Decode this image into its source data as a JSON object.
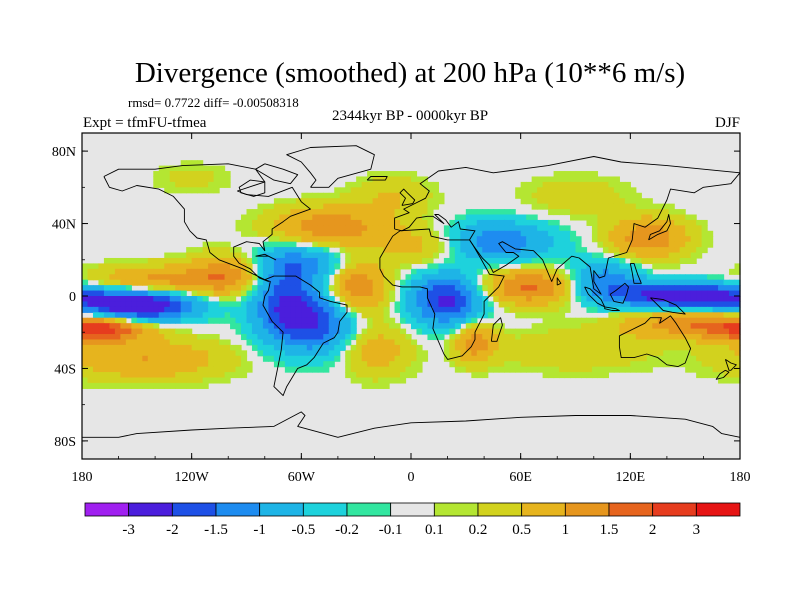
{
  "chart_data": {
    "type": "heatmap",
    "title": "Divergence (smoothed) at 200 hPa (10**6 m/s)",
    "stats": "rmsd= 0.7722 diff= -0.00508318",
    "left_label": "Expt = tfmFU-tfmea",
    "center_label": "2344kyr BP - 0000kyr BP",
    "right_label": "DJF",
    "x_ticks": [
      "180",
      "120W",
      "60W",
      "0",
      "60E",
      "120E",
      "180"
    ],
    "y_ticks": [
      "80N",
      "40N",
      "0",
      "40S",
      "80S"
    ],
    "x_tick_values": [
      -180,
      -120,
      -60,
      0,
      60,
      120,
      180
    ],
    "y_tick_values": [
      80,
      40,
      0,
      -40,
      -80
    ],
    "xlim": [
      -180,
      180
    ],
    "ylim": [
      -90,
      90
    ],
    "colorbar": {
      "labels": [
        "-3",
        "-2",
        "-1.5",
        "-1",
        "-0.5",
        "-0.2",
        "-0.1",
        "0.1",
        "0.2",
        "0.5",
        "1",
        "1.5",
        "2",
        "3"
      ],
      "colors": [
        "#a020f0",
        "#4b1edc",
        "#1e50e6",
        "#1e8cf0",
        "#1eb4e6",
        "#1ed2dc",
        "#32e6a0",
        "#e6e6e6",
        "#b4e632",
        "#d2d21e",
        "#e6b41e",
        "#e6961e",
        "#e6641e",
        "#e63c1e",
        "#e61414"
      ]
    },
    "anomalies": [
      {
        "lon": -150,
        "lat": -5,
        "value": -3.0,
        "slon": 22,
        "slat": 6
      },
      {
        "lon": -170,
        "lat": -18,
        "value": 2.2,
        "slon": 18,
        "slat": 5
      },
      {
        "lon": -140,
        "lat": 8,
        "value": 1.2,
        "slon": 25,
        "slat": 6
      },
      {
        "lon": -145,
        "lat": -35,
        "value": 1.0,
        "slon": 30,
        "slat": 8
      },
      {
        "lon": -100,
        "lat": 12,
        "value": 1.3,
        "slon": 15,
        "slat": 8
      },
      {
        "lon": -70,
        "lat": -5,
        "value": -1.8,
        "slon": 12,
        "slat": 14
      },
      {
        "lon": -50,
        "lat": -15,
        "value": -1.7,
        "slon": 14,
        "slat": 12
      },
      {
        "lon": -60,
        "lat": 18,
        "value": -1.2,
        "slon": 20,
        "slat": 8
      },
      {
        "lon": -45,
        "lat": 38,
        "value": 1.4,
        "slon": 22,
        "slat": 8
      },
      {
        "lon": -30,
        "lat": 5,
        "value": 1.6,
        "slon": 12,
        "slat": 10
      },
      {
        "lon": -10,
        "lat": 55,
        "value": 0.5,
        "slon": 15,
        "slat": 8
      },
      {
        "lon": -20,
        "lat": -30,
        "value": 0.8,
        "slon": 14,
        "slat": 10
      },
      {
        "lon": 20,
        "lat": -2,
        "value": -2.2,
        "slon": 14,
        "slat": 10
      },
      {
        "lon": 35,
        "lat": -25,
        "value": 1.3,
        "slon": 8,
        "slat": 8
      },
      {
        "lon": 10,
        "lat": 28,
        "value": 0.8,
        "slon": 20,
        "slat": 8
      },
      {
        "lon": 45,
        "lat": 30,
        "value": -1.5,
        "slon": 22,
        "slat": 8
      },
      {
        "lon": 65,
        "lat": 5,
        "value": 1.6,
        "slon": 20,
        "slat": 7
      },
      {
        "lon": 105,
        "lat": 8,
        "value": -1.4,
        "slon": 14,
        "slat": 8
      },
      {
        "lon": 130,
        "lat": 32,
        "value": 1.4,
        "slon": 15,
        "slat": 8
      },
      {
        "lon": 150,
        "lat": 0,
        "value": -2.8,
        "slon": 25,
        "slat": 5
      },
      {
        "lon": 150,
        "lat": -15,
        "value": 1.3,
        "slon": 25,
        "slat": 6
      },
      {
        "lon": 90,
        "lat": -30,
        "value": 0.5,
        "slon": 30,
        "slat": 8
      },
      {
        "lon": -120,
        "lat": 65,
        "value": 0.3,
        "slon": 15,
        "slat": 6
      },
      {
        "lon": 90,
        "lat": 55,
        "value": 0.4,
        "slon": 20,
        "slat": 8
      }
    ]
  }
}
